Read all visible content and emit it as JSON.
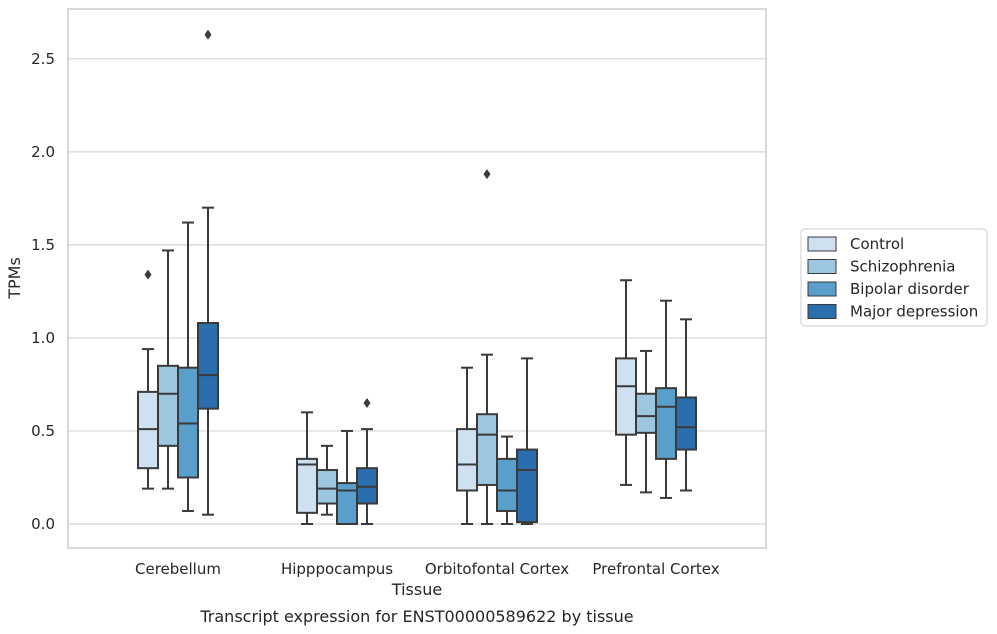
{
  "chart_data": {
    "type": "box",
    "title": "",
    "caption": "Transcript expression for ENST00000589622 by tissue",
    "xlabel": "Tissue",
    "ylabel": "TPMs",
    "ylim": [
      -0.12,
      2.77
    ],
    "yticks": [
      "0.0",
      "0.5",
      "1.0",
      "1.5",
      "2.0",
      "2.5"
    ],
    "ytick_values": [
      0.0,
      0.5,
      1.0,
      1.5,
      2.0,
      2.5
    ],
    "grid": "horizontal",
    "legend_position": "right",
    "categories": [
      "Cerebellum",
      "Hipppocampus",
      "Orbitofontal Cortex",
      "Prefrontal Cortex"
    ],
    "series": [
      {
        "name": "Control",
        "color": "#cfe0f1",
        "boxes": [
          {
            "whislo": 0.19,
            "q1": 0.3,
            "med": 0.51,
            "q3": 0.71,
            "whishi": 0.94,
            "fliers": [
              1.34
            ]
          },
          {
            "whislo": 0.0,
            "q1": 0.06,
            "med": 0.32,
            "q3": 0.35,
            "whishi": 0.6,
            "fliers": []
          },
          {
            "whislo": 0.0,
            "q1": 0.18,
            "med": 0.32,
            "q3": 0.51,
            "whishi": 0.84,
            "fliers": []
          },
          {
            "whislo": 0.21,
            "q1": 0.48,
            "med": 0.74,
            "q3": 0.89,
            "whishi": 1.31,
            "fliers": []
          }
        ]
      },
      {
        "name": "Schizophrenia",
        "color": "#9dc6e0",
        "boxes": [
          {
            "whislo": 0.19,
            "q1": 0.42,
            "med": 0.7,
            "q3": 0.85,
            "whishi": 1.47,
            "fliers": []
          },
          {
            "whislo": 0.05,
            "q1": 0.11,
            "med": 0.19,
            "q3": 0.29,
            "whishi": 0.42,
            "fliers": []
          },
          {
            "whislo": 0.0,
            "q1": 0.21,
            "med": 0.48,
            "q3": 0.59,
            "whishi": 0.91,
            "fliers": [
              1.88
            ]
          },
          {
            "whislo": 0.17,
            "q1": 0.49,
            "med": 0.58,
            "q3": 0.7,
            "whishi": 0.93,
            "fliers": []
          }
        ]
      },
      {
        "name": "Bipolar disorder",
        "color": "#5a9ecb",
        "boxes": [
          {
            "whislo": 0.07,
            "q1": 0.25,
            "med": 0.54,
            "q3": 0.84,
            "whishi": 1.62,
            "fliers": []
          },
          {
            "whislo": 0.0,
            "q1": 0.0,
            "med": 0.18,
            "q3": 0.22,
            "whishi": 0.5,
            "fliers": []
          },
          {
            "whislo": 0.0,
            "q1": 0.07,
            "med": 0.18,
            "q3": 0.35,
            "whishi": 0.47,
            "fliers": []
          },
          {
            "whislo": 0.14,
            "q1": 0.35,
            "med": 0.63,
            "q3": 0.73,
            "whishi": 1.2,
            "fliers": []
          }
        ]
      },
      {
        "name": "Major depression",
        "color": "#2b6ead",
        "boxes": [
          {
            "whislo": 0.05,
            "q1": 0.62,
            "med": 0.8,
            "q3": 1.08,
            "whishi": 1.7,
            "fliers": [
              2.63
            ]
          },
          {
            "whislo": 0.0,
            "q1": 0.11,
            "med": 0.2,
            "q3": 0.3,
            "whishi": 0.51,
            "fliers": [
              0.65
            ]
          },
          {
            "whislo": 0.0,
            "q1": 0.01,
            "med": 0.29,
            "q3": 0.4,
            "whishi": 0.89,
            "fliers": []
          },
          {
            "whislo": 0.18,
            "q1": 0.4,
            "med": 0.52,
            "q3": 0.68,
            "whishi": 1.1,
            "fliers": []
          }
        ]
      }
    ]
  }
}
